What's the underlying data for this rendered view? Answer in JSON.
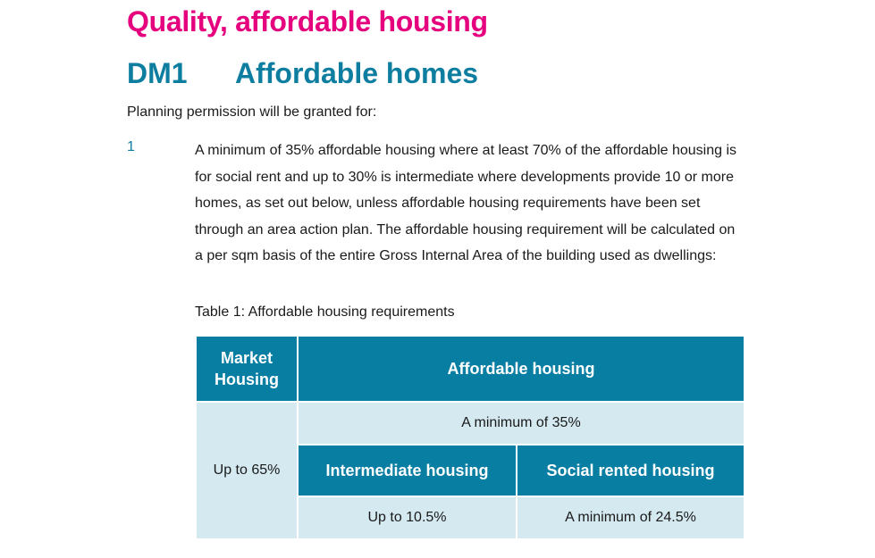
{
  "section_heading": "Quality, affordable housing",
  "policy": {
    "code": "DM1",
    "title": "Affordable homes"
  },
  "intro_text": "Planning permission will be granted for:",
  "clause": {
    "number": "1",
    "text": "A minimum of 35% affordable housing where at least 70% of the affordable housing is for social rent and up to 30% is intermediate where developments provide 10 or more homes, as set out below, unless affordable housing requirements have been set through an area action plan. The affordable housing requirement will be calculated on a per sqm basis of the entire Gross Internal Area of the building used as dwellings:"
  },
  "table": {
    "caption": "Table 1: Affordable housing requirements",
    "market_header_line1": "Market",
    "market_header_line2": "Housing",
    "affordable_header": "Affordable housing",
    "market_value": "Up to 65%",
    "affordable_minimum": "A minimum of 35%",
    "intermediate_header": "Intermediate housing",
    "social_header": "Social rented housing",
    "intermediate_value": "Up to 10.5%",
    "social_value": "A minimum of 24.5%"
  },
  "colors": {
    "section_heading": "#e5007e",
    "policy_heading": "#0e7ea0",
    "table_header_bg": "#087ea3",
    "table_cell_bg": "#d5e9f0"
  }
}
